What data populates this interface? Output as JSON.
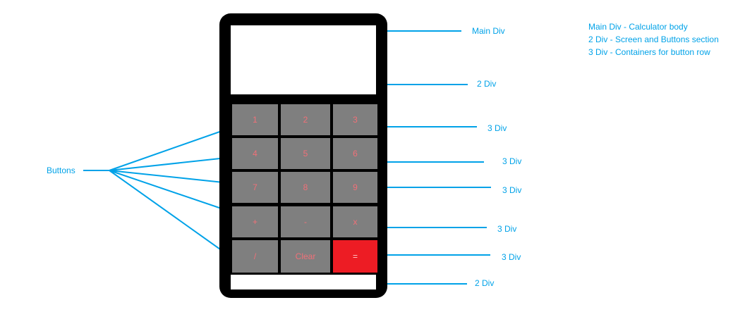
{
  "buttons": [
    {
      "label": "1"
    },
    {
      "label": "2"
    },
    {
      "label": "3"
    },
    {
      "label": "4"
    },
    {
      "label": "5"
    },
    {
      "label": "6"
    },
    {
      "label": "7"
    },
    {
      "label": "8"
    },
    {
      "label": "9"
    },
    {
      "label": "+"
    },
    {
      "label": "-"
    },
    {
      "label": "x"
    },
    {
      "label": "/"
    },
    {
      "label": "Clear"
    },
    {
      "label": "="
    }
  ],
  "annotations": {
    "main_div": "Main Div",
    "screen_div": "2 Div",
    "row1": "3 Div",
    "row2": "3 Div",
    "row3": "3 Div",
    "row4": "3 Div",
    "row5": "3 Div",
    "bottom_div": "2 Div",
    "buttons": "Buttons"
  },
  "legend": {
    "line1": "Main Div - Calculator body",
    "line2": "2 Div - Screen and Buttons section",
    "line3": "3 Div - Containers for button row"
  },
  "colors": {
    "annotation": "#00a2e8",
    "button": "#7f7f7f",
    "equals_button": "#ed1c24",
    "body": "#000000"
  }
}
